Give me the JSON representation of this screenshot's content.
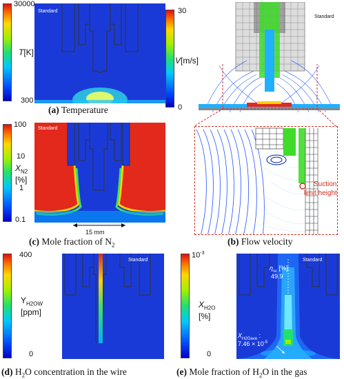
{
  "panel_a": {
    "colorbar": {
      "top": "30000",
      "bottom": "300",
      "quantity": "T",
      "unit": "[K]"
    },
    "stamp": "Standard",
    "caption_letter": "(a)",
    "caption_text": " Temperature"
  },
  "panel_b": {
    "colorbar": {
      "top": "30",
      "bottom": "0",
      "quantity": "V",
      "unit": "[m/s]"
    },
    "stamp": "Standard",
    "annotation_line1": "Suction",
    "annotation_line2": "limit height",
    "caption_letter": "(b)",
    "caption_text": " Flow velocity"
  },
  "panel_c": {
    "colorbar": {
      "t100": "100",
      "t10": "10",
      "t1": "1",
      "t01": "0.1",
      "quantity": "X",
      "subscript": "N2",
      "unit": "[%]"
    },
    "stamp": "Standard",
    "scale": "15 mm",
    "caption_letter": "(c)",
    "caption_text": " Mole fraction of N",
    "caption_sub": "2"
  },
  "panel_d": {
    "colorbar": {
      "top": "400",
      "bottom": "0",
      "quantity": "Y",
      "subscript": "H2OW",
      "unit": "[ppm]"
    },
    "stamp": "Standard",
    "caption_letter": "(d)",
    "caption_text": " H",
    "caption_sub": "2",
    "caption_tail": "O concentration in the wire"
  },
  "panel_e": {
    "colorbar": {
      "top": "10",
      "top_exp": "-3",
      "bottom": "0",
      "quantity": "X",
      "subscript": "H2O",
      "unit": "[%]"
    },
    "stamp": "Standard",
    "eta_symbol": "η",
    "eta_sub": "sc",
    "eta_unit": " [%]:",
    "eta_value": "49.9",
    "xave_symbol": "X",
    "xave_sub": "H2Oave",
    "xave_colon": " :",
    "xave_value": "7.46 × 10",
    "xave_exp": "-5",
    "caption_letter": "(e)",
    "caption_text": " Mole fraction of H",
    "caption_sub": "2",
    "caption_tail": "O in the gas"
  },
  "colors": {
    "deep_blue": "#1a3ad8",
    "red": "#e0241b",
    "green": "#3fdc2a",
    "annotation_red": "#d42a1c"
  }
}
